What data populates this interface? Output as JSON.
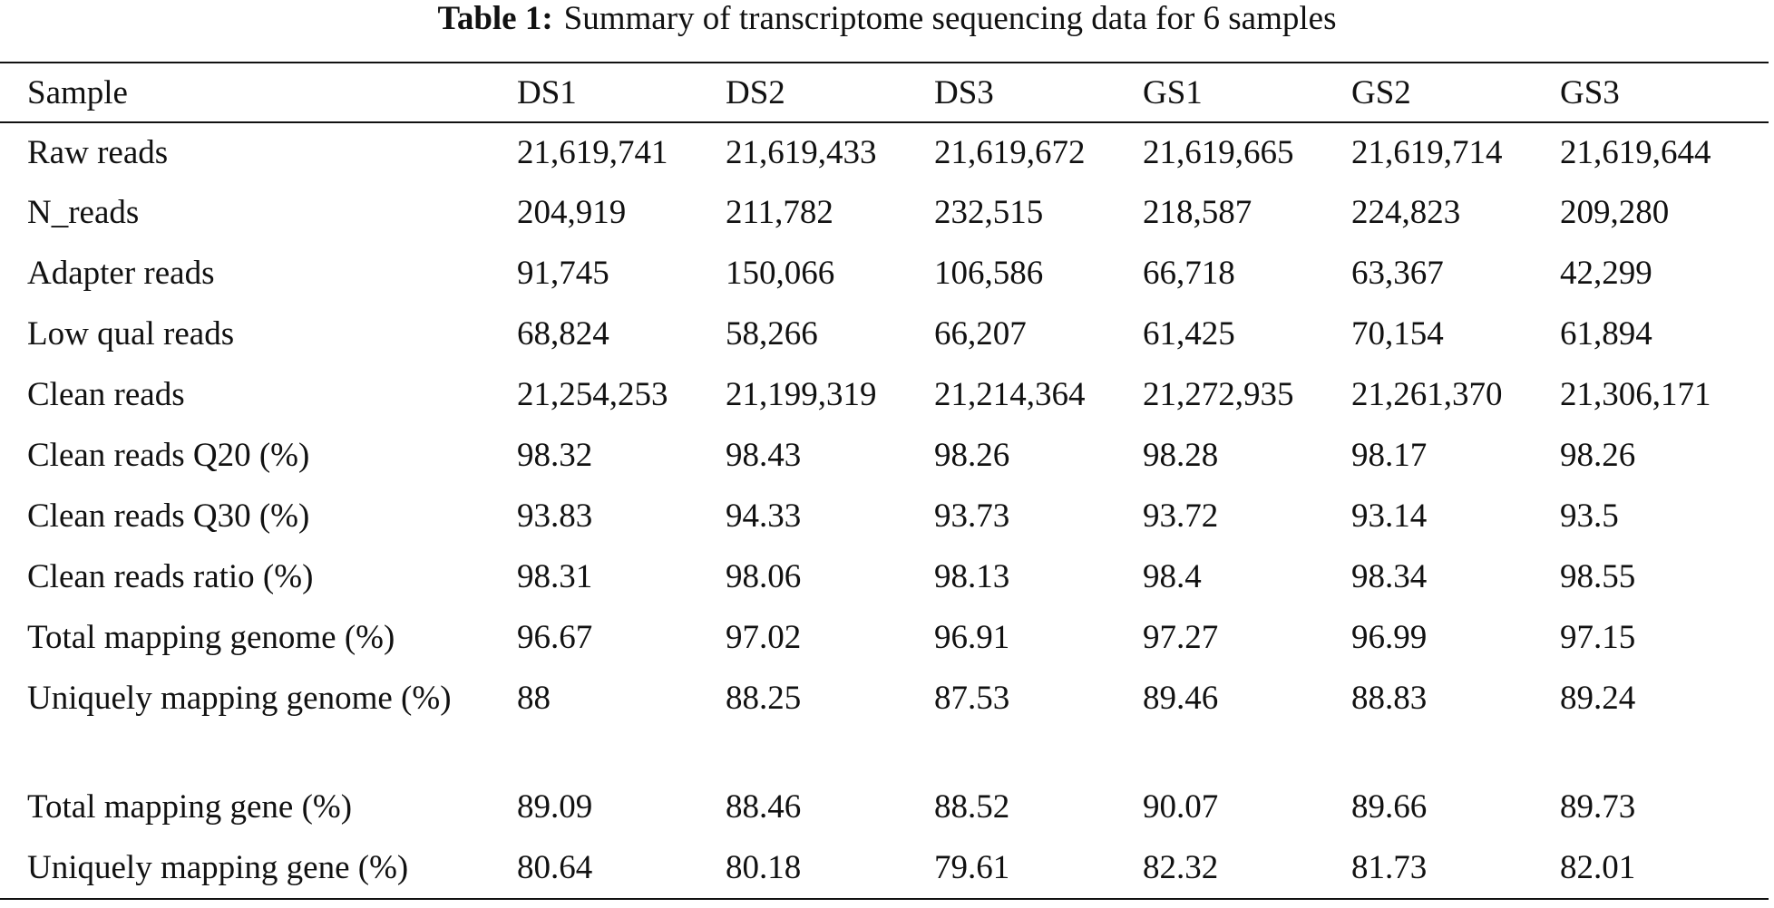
{
  "table": {
    "caption_label": "Table 1:",
    "caption": "Summary of transcriptome sequencing data for 6 samples",
    "header": [
      "Sample",
      "DS1",
      "DS2",
      "DS3",
      "GS1",
      "GS2",
      "GS3"
    ],
    "rows": [
      [
        "Raw reads",
        "21,619,741",
        "21,619,433",
        "21,619,672",
        "21,619,665",
        "21,619,714",
        "21,619,644"
      ],
      [
        "N_reads",
        "204,919",
        "211,782",
        "232,515",
        "218,587",
        "224,823",
        "209,280"
      ],
      [
        "Adapter reads",
        "91,745",
        "150,066",
        "106,586",
        "66,718",
        "63,367",
        "42,299"
      ],
      [
        "Low qual reads",
        "68,824",
        "58,266",
        "66,207",
        "61,425",
        "70,154",
        "61,894"
      ],
      [
        "Clean reads",
        "21,254,253",
        "21,199,319",
        "21,214,364",
        "21,272,935",
        "21,261,370",
        "21,306,171"
      ],
      [
        "Clean reads Q20 (%)",
        "98.32",
        "98.43",
        "98.26",
        "98.28",
        "98.17",
        "98.26"
      ],
      [
        "Clean reads Q30 (%)",
        "93.83",
        "94.33",
        "93.73",
        "93.72",
        "93.14",
        "93.5"
      ],
      [
        "Clean reads ratio (%)",
        "98.31",
        "98.06",
        "98.13",
        "98.4",
        "98.34",
        "98.55"
      ],
      [
        "Total mapping genome (%)",
        "96.67",
        "97.02",
        "96.91",
        "97.27",
        "96.99",
        "97.15"
      ],
      [
        "Uniquely mapping genome (%)",
        "88",
        "88.25",
        "87.53",
        "89.46",
        "88.83",
        "89.24"
      ],
      [
        "Total mapping gene (%)",
        "89.09",
        "88.46",
        "88.52",
        "90.07",
        "89.66",
        "89.73"
      ],
      [
        "Uniquely mapping gene (%)",
        "80.64",
        "80.18",
        "79.61",
        "82.32",
        "81.73",
        "82.01"
      ]
    ]
  }
}
